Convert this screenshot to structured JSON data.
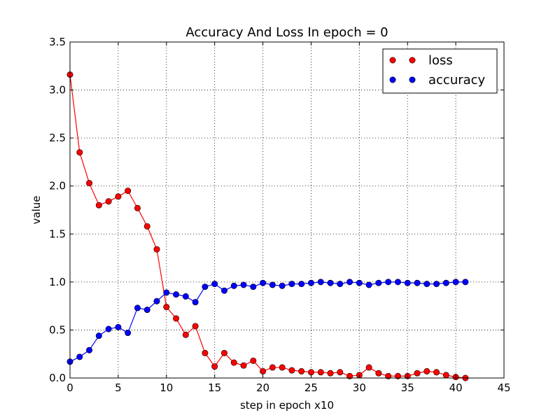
{
  "chart_data": {
    "type": "line",
    "title": "Accuracy And Loss In epoch = 0",
    "xlabel": "step in epoch x10",
    "ylabel": "value",
    "xlim": [
      0,
      45
    ],
    "ylim": [
      0,
      3.5
    ],
    "xticks": [
      0,
      5,
      10,
      15,
      20,
      25,
      30,
      35,
      40,
      45
    ],
    "xtick_labels": [
      "0",
      "5",
      "10",
      "15",
      "20",
      "25",
      "30",
      "35",
      "40",
      "45"
    ],
    "yticks": [
      0,
      0.5,
      1,
      1.5,
      2,
      2.5,
      3,
      3.5
    ],
    "ytick_labels": [
      "0.0",
      "0.5",
      "1.0",
      "1.5",
      "2.0",
      "2.5",
      "3.0",
      "3.5"
    ],
    "grid": true,
    "legend_position": "top-right",
    "x": [
      0,
      1,
      2,
      3,
      4,
      5,
      6,
      7,
      8,
      9,
      10,
      11,
      12,
      13,
      14,
      15,
      16,
      17,
      18,
      19,
      20,
      21,
      22,
      23,
      24,
      25,
      26,
      27,
      28,
      29,
      30,
      31,
      32,
      33,
      34,
      35,
      36,
      37,
      38,
      39,
      40,
      41
    ],
    "series": [
      {
        "name": "loss",
        "color": "#ff0000",
        "marker": "circle",
        "values": [
          3.16,
          2.35,
          2.03,
          1.8,
          1.84,
          1.89,
          1.95,
          1.77,
          1.58,
          1.34,
          0.74,
          0.62,
          0.45,
          0.54,
          0.26,
          0.12,
          0.26,
          0.16,
          0.13,
          0.18,
          0.07,
          0.11,
          0.11,
          0.08,
          0.07,
          0.06,
          0.06,
          0.05,
          0.06,
          0.02,
          0.03,
          0.11,
          0.05,
          0.02,
          0.02,
          0.02,
          0.05,
          0.07,
          0.06,
          0.03,
          0.01,
          0.0
        ]
      },
      {
        "name": "accuracy",
        "color": "#0000ff",
        "marker": "circle",
        "values": [
          0.17,
          0.22,
          0.29,
          0.44,
          0.51,
          0.53,
          0.47,
          0.73,
          0.71,
          0.8,
          0.89,
          0.87,
          0.85,
          0.79,
          0.95,
          0.98,
          0.91,
          0.96,
          0.97,
          0.95,
          0.99,
          0.97,
          0.96,
          0.98,
          0.98,
          0.99,
          1.0,
          0.99,
          0.98,
          1.0,
          0.99,
          0.97,
          0.99,
          1.0,
          1.0,
          0.99,
          0.99,
          0.98,
          0.98,
          0.99,
          1.0,
          1.0
        ]
      }
    ]
  }
}
